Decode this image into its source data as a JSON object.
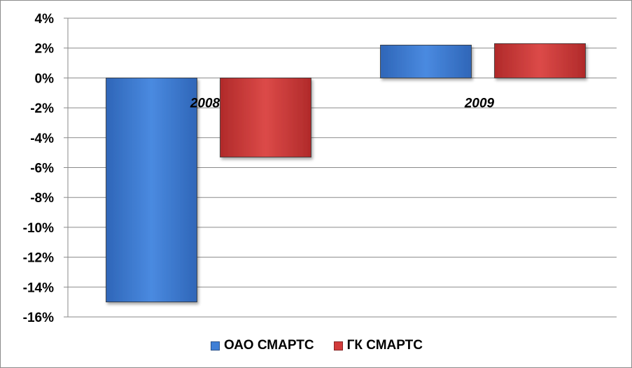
{
  "chart_data": {
    "type": "bar",
    "categories": [
      "2008",
      "2009"
    ],
    "series": [
      {
        "name": "ОАО СМАРТС",
        "values": [
          -15.0,
          2.2
        ],
        "color": "#3f7fd6"
      },
      {
        "name": "ГК СМАРТС",
        "values": [
          -5.3,
          2.3
        ],
        "color": "#d23b3b"
      }
    ],
    "ylim": [
      -16,
      4
    ],
    "yticks": [
      "4%",
      "2%",
      "0%",
      "-2%",
      "-4%",
      "-6%",
      "-8%",
      "-10%",
      "-12%",
      "-14%",
      "-16%"
    ],
    "grid": true,
    "legend_position": "bottom",
    "title": "",
    "xlabel": "",
    "ylabel": ""
  }
}
